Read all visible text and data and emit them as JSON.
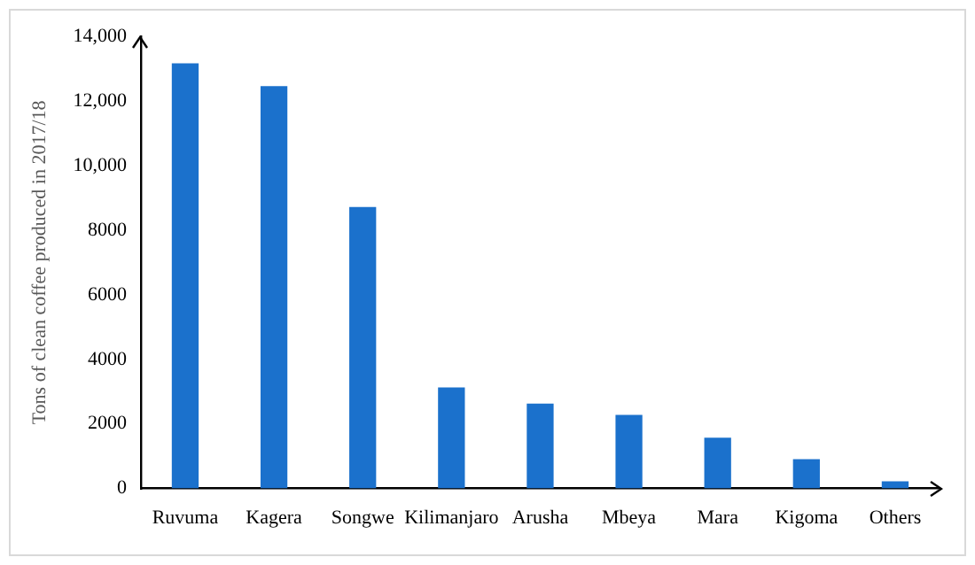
{
  "chart_data": {
    "type": "bar",
    "ylabel": "Tons of clean coffee produced in 2017/18",
    "categories": [
      "Ruvuma",
      "Kagera",
      "Songwe",
      "Kilimanjaro",
      "Arusha",
      "Mbeya",
      "Mara",
      "Kigoma",
      "Others"
    ],
    "values": [
      13170,
      12460,
      8720,
      3130,
      2630,
      2280,
      1570,
      910,
      220
    ],
    "color": "#1b71cc",
    "ylim": [
      0,
      14000
    ],
    "yticks": [
      0,
      2000,
      4000,
      6000,
      8000,
      {
        "value": 10000,
        "label": "10,000"
      },
      {
        "value": 12000,
        "label": "12,000"
      },
      {
        "value": 14000,
        "label": "14,000"
      }
    ],
    "grid": false,
    "legend": false
  }
}
